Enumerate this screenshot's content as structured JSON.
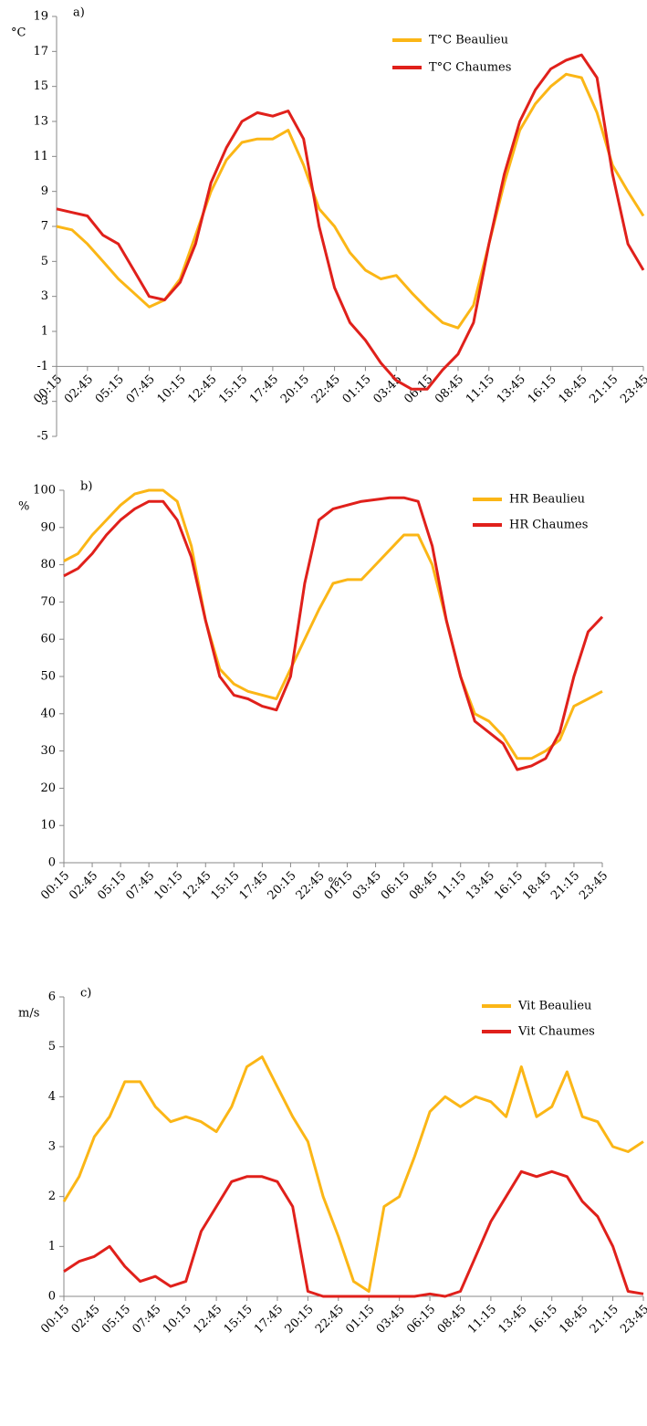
{
  "chart_data": [
    {
      "type": "line",
      "panel": "a)",
      "unit": "°C",
      "categories": [
        "00:15",
        null,
        "02:45",
        null,
        "05:15",
        null,
        "07:45",
        null,
        "10:15",
        null,
        "12:45",
        null,
        "15:15",
        null,
        "17:45",
        null,
        "20:15",
        null,
        "22:45",
        null,
        "01:15",
        null,
        "03:45",
        null,
        "06:15",
        null,
        "08:45",
        null,
        "11:15",
        null,
        "13:45",
        null,
        "16:15",
        null,
        "18:45",
        null,
        "21:15",
        null,
        "23:45"
      ],
      "series": [
        {
          "name": "T°C Beaulieu",
          "color": "#fbb616",
          "values": [
            7.0,
            6.8,
            6.0,
            5.0,
            4.0,
            3.2,
            2.4,
            2.8,
            4.0,
            6.5,
            9.0,
            10.8,
            11.8,
            12.0,
            12.0,
            12.5,
            10.5,
            8.0,
            7.0,
            5.5,
            4.5,
            4.0,
            4.2,
            3.2,
            2.3,
            1.5,
            1.2,
            2.5,
            6.0,
            9.5,
            12.5,
            14.0,
            15.0,
            15.7,
            15.5,
            13.5,
            10.5,
            9.0,
            7.6
          ]
        },
        {
          "name": "T°C Chaumes",
          "color": "#e0201b",
          "values": [
            8.0,
            7.8,
            7.6,
            6.5,
            6.0,
            4.5,
            3.0,
            2.8,
            3.8,
            6.0,
            9.5,
            11.5,
            13.0,
            13.5,
            13.3,
            13.6,
            12.0,
            7.0,
            3.5,
            1.5,
            0.5,
            -0.8,
            -1.8,
            -2.3,
            -2.3,
            -1.2,
            -0.3,
            1.5,
            6.0,
            10.0,
            13.0,
            14.8,
            16.0,
            16.5,
            16.8,
            15.5,
            10.0,
            6.0,
            4.5
          ]
        }
      ],
      "ylim": [
        -5,
        19
      ],
      "yticks": [
        -5,
        -3,
        -1,
        1,
        3,
        5,
        7,
        9,
        11,
        13,
        15,
        17,
        19
      ],
      "xaxis_cross": -1,
      "grid": false
    },
    {
      "type": "line",
      "panel": "b)",
      "unit": "%",
      "annotation": "%",
      "categories": [
        "00:15",
        null,
        "02:45",
        null,
        "05:15",
        null,
        "07:45",
        null,
        "10:15",
        null,
        "12:45",
        null,
        "15:15",
        null,
        "17:45",
        null,
        "20:15",
        null,
        "22:45",
        null,
        "01:15",
        null,
        "03:45",
        null,
        "06:15",
        null,
        "08:45",
        null,
        "11:15",
        null,
        "13:45",
        null,
        "16:15",
        null,
        "18:45",
        null,
        "21:15",
        null,
        "23:45"
      ],
      "series": [
        {
          "name": "HR Beaulieu",
          "color": "#fbb616",
          "values": [
            81,
            83,
            88,
            92,
            96,
            99,
            100,
            100,
            97,
            85,
            65,
            52,
            48,
            46,
            45,
            44,
            52,
            60,
            68,
            75,
            76,
            76,
            80,
            84,
            88,
            88,
            80,
            65,
            50,
            40,
            38,
            34,
            28,
            28,
            30,
            33,
            42,
            44,
            46
          ]
        },
        {
          "name": "HR Chaumes",
          "color": "#e0201b",
          "values": [
            77,
            79,
            83,
            88,
            92,
            95,
            97,
            97,
            92,
            82,
            65,
            50,
            45,
            44,
            42,
            41,
            50,
            75,
            92,
            95,
            96,
            97,
            97.5,
            98,
            98,
            97,
            85,
            65,
            50,
            38,
            35,
            32,
            25,
            26,
            28,
            35,
            50,
            62,
            66
          ]
        }
      ],
      "ylim": [
        0,
        100
      ],
      "yticks": [
        0,
        10,
        20,
        30,
        40,
        50,
        60,
        70,
        80,
        90,
        100
      ],
      "grid": false
    },
    {
      "type": "line",
      "panel": "c)",
      "unit": "m/s",
      "categories": [
        "00:15",
        null,
        "02:45",
        null,
        "05:15",
        null,
        "07:45",
        null,
        "10:15",
        null,
        "12:45",
        null,
        "15:15",
        null,
        "17:45",
        null,
        "20:15",
        null,
        "22:45",
        null,
        "01:15",
        null,
        "03:45",
        null,
        "06:15",
        null,
        "08:45",
        null,
        "11:15",
        null,
        "13:45",
        null,
        "16:15",
        null,
        "18:45",
        null,
        "21:15",
        null,
        "23:45"
      ],
      "series": [
        {
          "name": "Vit Beaulieu",
          "color": "#fbb616",
          "values": [
            1.9,
            2.4,
            3.2,
            3.6,
            4.3,
            4.3,
            3.8,
            3.5,
            3.6,
            3.5,
            3.3,
            3.8,
            4.6,
            4.8,
            4.2,
            3.6,
            3.1,
            2.0,
            1.2,
            0.3,
            0.1,
            1.8,
            2.0,
            2.8,
            3.7,
            4.0,
            3.8,
            4.0,
            3.9,
            3.6,
            4.6,
            3.6,
            3.8,
            4.5,
            3.6,
            3.5,
            3.0,
            2.9,
            3.1
          ]
        },
        {
          "name": "Vit Chaumes",
          "color": "#e0201b",
          "values": [
            0.5,
            0.7,
            0.8,
            1.0,
            0.6,
            0.3,
            0.4,
            0.2,
            0.3,
            1.3,
            1.8,
            2.3,
            2.4,
            2.4,
            2.3,
            1.8,
            0.1,
            0,
            0,
            0,
            0,
            0,
            0,
            0,
            0.05,
            0,
            0.1,
            0.8,
            1.5,
            2.0,
            2.5,
            2.4,
            2.5,
            2.4,
            1.9,
            1.6,
            1.0,
            0.1,
            0.05
          ]
        }
      ],
      "ylim": [
        0,
        6
      ],
      "yticks": [
        0,
        1,
        2,
        3,
        4,
        5,
        6
      ],
      "grid": false
    }
  ]
}
